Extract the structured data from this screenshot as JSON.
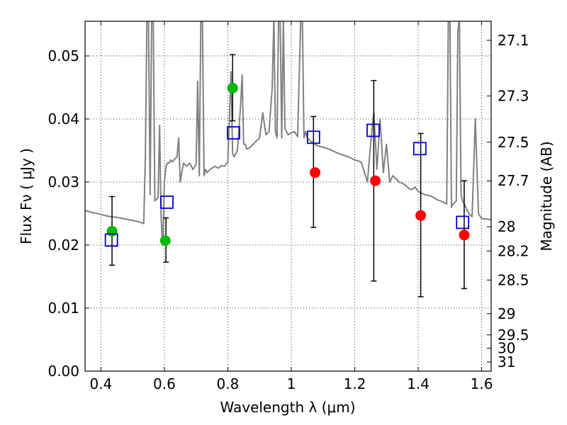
{
  "chart_data": {
    "type": "scatter",
    "xlabel": "Wavelength  λ (μm)",
    "ylabel": "Flux  Fν  ( μJy )",
    "y2label": "Magnitude (AB)",
    "xlim": [
      0.35,
      1.63
    ],
    "ylim": [
      0.0,
      0.0555
    ],
    "grid": true,
    "x_ticks": [
      {
        "value": 0.4,
        "label": "0.4"
      },
      {
        "value": 0.6,
        "label": "0.6"
      },
      {
        "value": 0.8,
        "label": "0.8"
      },
      {
        "value": 1.0,
        "label": "1"
      },
      {
        "value": 1.2,
        "label": "1.2"
      },
      {
        "value": 1.4,
        "label": "1.4"
      },
      {
        "value": 1.6,
        "label": "1.6"
      }
    ],
    "y_ticks": [
      {
        "value": 0.0,
        "label": "0.00"
      },
      {
        "value": 0.01,
        "label": "0.01"
      },
      {
        "value": 0.02,
        "label": "0.02"
      },
      {
        "value": 0.03,
        "label": "0.03"
      },
      {
        "value": 0.04,
        "label": "0.04"
      },
      {
        "value": 0.05,
        "label": "0.05"
      }
    ],
    "y2_ticks": [
      {
        "mag": 27.1,
        "label": "27.1"
      },
      {
        "mag": 27.3,
        "label": "27.3"
      },
      {
        "mag": 27.5,
        "label": "27.5"
      },
      {
        "mag": 27.7,
        "label": "27.7"
      },
      {
        "mag": 28.0,
        "label": "28"
      },
      {
        "mag": 28.2,
        "label": "28.2"
      },
      {
        "mag": 28.5,
        "label": "28.5"
      },
      {
        "mag": 29.0,
        "label": "29"
      },
      {
        "mag": 29.5,
        "label": "29.5"
      },
      {
        "mag": 30.0,
        "label": "30"
      },
      {
        "mag": 31.0,
        "label": "31"
      }
    ],
    "series": [
      {
        "kind": "line",
        "color": "#808080",
        "x": [
          0.35,
          0.37,
          0.39,
          0.41,
          0.43,
          0.45,
          0.47,
          0.49,
          0.51,
          0.525,
          0.535,
          0.54,
          0.545,
          0.55,
          0.555,
          0.56,
          0.565,
          0.57,
          0.58,
          0.585,
          0.59,
          0.595,
          0.6,
          0.605,
          0.61,
          0.615,
          0.62,
          0.625,
          0.63,
          0.64,
          0.645,
          0.65,
          0.66,
          0.67,
          0.68,
          0.69,
          0.7,
          0.705,
          0.71,
          0.715,
          0.72,
          0.725,
          0.73,
          0.735,
          0.74,
          0.75,
          0.76,
          0.77,
          0.78,
          0.79,
          0.8,
          0.805,
          0.81,
          0.815,
          0.82,
          0.83,
          0.84,
          0.845,
          0.85,
          0.855,
          0.86,
          0.87,
          0.88,
          0.89,
          0.9,
          0.91,
          0.92,
          0.93,
          0.94,
          0.945,
          0.95,
          0.955,
          0.96,
          0.965,
          0.97,
          0.975,
          0.98,
          0.99,
          1.0,
          1.01,
          1.02,
          1.03,
          1.035,
          1.04,
          1.045,
          1.05,
          1.06,
          1.07,
          1.08,
          1.1,
          1.12,
          1.15,
          1.18,
          1.2,
          1.22,
          1.24,
          1.25,
          1.26,
          1.27,
          1.28,
          1.29,
          1.3,
          1.31,
          1.32,
          1.33,
          1.34,
          1.35,
          1.36,
          1.37,
          1.38,
          1.39,
          1.4,
          1.42,
          1.44,
          1.46,
          1.48,
          1.49,
          1.495,
          1.5,
          1.505,
          1.51,
          1.52,
          1.525,
          1.53,
          1.535,
          1.54,
          1.55,
          1.56,
          1.57,
          1.58,
          1.59,
          1.6,
          1.62,
          1.63
        ],
        "y": [
          0.0255,
          0.0252,
          0.025,
          0.0247,
          0.0245,
          0.0244,
          0.0242,
          0.024,
          0.0238,
          0.0236,
          0.0234,
          0.034,
          0.056,
          0.056,
          0.028,
          0.056,
          0.056,
          0.027,
          0.0275,
          0.039,
          0.024,
          0.02,
          0.03,
          0.0325,
          0.033,
          0.033,
          0.0335,
          0.0332,
          0.0335,
          0.034,
          0.037,
          0.03,
          0.033,
          0.0325,
          0.033,
          0.032,
          0.0328,
          0.046,
          0.031,
          0.056,
          0.056,
          0.031,
          0.032,
          0.0315,
          0.0318,
          0.0322,
          0.0325,
          0.0322,
          0.0326,
          0.0325,
          0.0332,
          0.04,
          0.0475,
          0.0345,
          0.034,
          0.035,
          0.042,
          0.047,
          0.036,
          0.036,
          0.0352,
          0.0355,
          0.036,
          0.0365,
          0.037,
          0.041,
          0.0375,
          0.038,
          0.045,
          0.056,
          0.038,
          0.037,
          0.056,
          0.056,
          0.037,
          0.056,
          0.0385,
          0.0375,
          0.0378,
          0.038,
          0.0372,
          0.056,
          0.056,
          0.037,
          0.038,
          0.037,
          0.0365,
          0.0362,
          0.0358,
          0.0355,
          0.0352,
          0.0345,
          0.034,
          0.0335,
          0.0332,
          0.03,
          0.036,
          0.041,
          0.032,
          0.04,
          0.0315,
          0.036,
          0.03,
          0.031,
          0.0305,
          0.03,
          0.0298,
          0.0295,
          0.029,
          0.0288,
          0.0292,
          0.0285,
          0.028,
          0.0278,
          0.0272,
          0.0268,
          0.0265,
          0.056,
          0.056,
          0.026,
          0.0265,
          0.027,
          0.054,
          0.056,
          0.028,
          0.027,
          0.026,
          0.025,
          0.0245,
          0.04,
          0.025,
          0.0242,
          0.0241,
          0.024
        ]
      },
      {
        "kind": "markers",
        "marker": "circle",
        "color": "#00bb00",
        "x": [
          0.435,
          0.603,
          0.815
        ],
        "y": [
          0.0222,
          0.0207,
          0.0449
        ]
      },
      {
        "kind": "markers",
        "marker": "circle",
        "color": "#ff0000",
        "x": [
          1.075,
          1.265,
          1.408,
          1.545
        ],
        "y": [
          0.0315,
          0.0302,
          0.0247,
          0.0216
        ]
      },
      {
        "kind": "markers",
        "marker": "open-square",
        "color": "#0000cc",
        "x": [
          0.433,
          0.608,
          0.818,
          1.07,
          1.258,
          1.405,
          1.54
        ],
        "y": [
          0.0208,
          0.0268,
          0.0378,
          0.0371,
          0.0382,
          0.0353,
          0.0236
        ]
      },
      {
        "kind": "errorbars",
        "color": "#000000",
        "x": [
          0.435,
          0.605,
          0.815,
          1.07,
          1.26,
          1.408,
          1.545
        ],
        "ylow": [
          0.0168,
          0.0173,
          0.0397,
          0.0228,
          0.0143,
          0.0118,
          0.0131
        ],
        "yhigh": [
          0.0277,
          0.0243,
          0.0502,
          0.0404,
          0.0461,
          0.0377,
          0.0302
        ]
      }
    ]
  }
}
